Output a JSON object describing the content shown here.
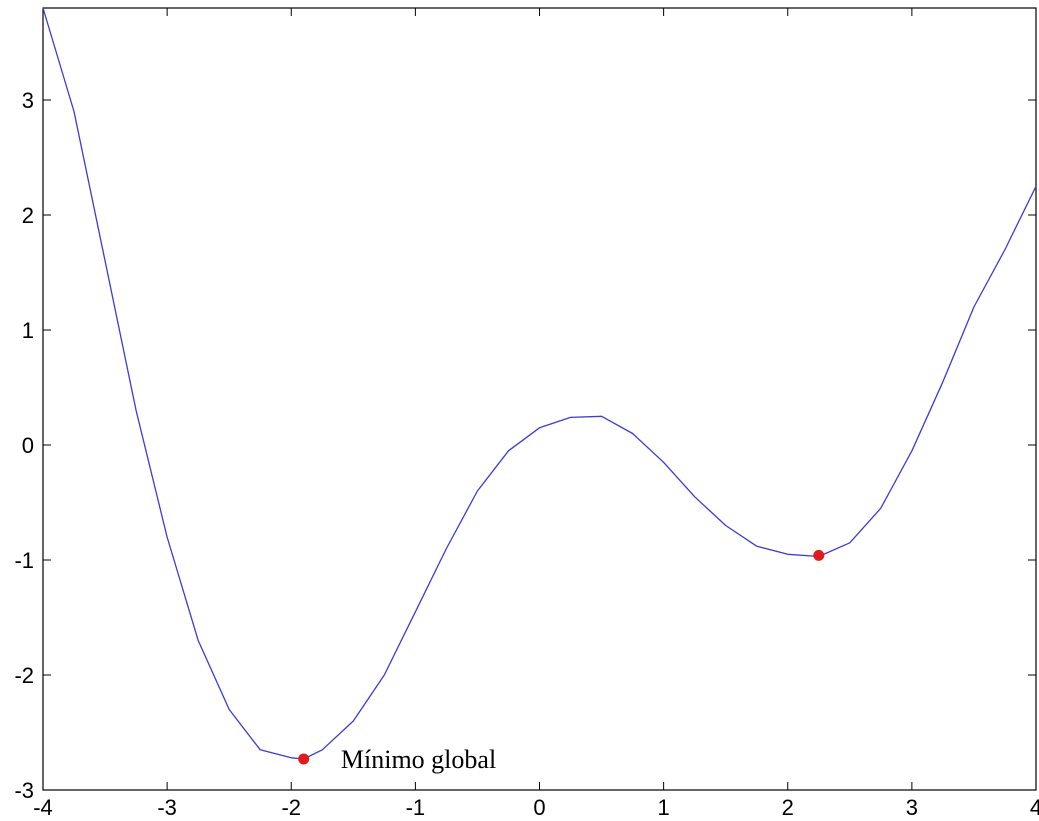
{
  "chart_data": {
    "type": "line",
    "title": "",
    "xlabel": "",
    "ylabel": "",
    "xlim": [
      -4,
      4
    ],
    "ylim": [
      -3,
      3.8
    ],
    "grid": false,
    "legend": "none",
    "x_ticks": [
      -4,
      -3,
      -2,
      -1,
      0,
      1,
      2,
      3,
      4
    ],
    "y_ticks": [
      -3,
      -2,
      -1,
      0,
      1,
      2,
      3
    ],
    "x_tick_labels": [
      "-4",
      "-3",
      "-2",
      "-1",
      "0",
      "1",
      "2",
      "3",
      "4"
    ],
    "y_tick_labels": [
      "-3",
      "-2",
      "-1",
      "0",
      "1",
      "2",
      "3"
    ],
    "series": [
      {
        "color": "#3b3bd6",
        "x": [
          -4.0,
          -3.75,
          -3.5,
          -3.25,
          -3.0,
          -2.75,
          -2.5,
          -2.25,
          -2.0,
          -1.9,
          -1.75,
          -1.5,
          -1.25,
          -1.0,
          -0.75,
          -0.5,
          -0.25,
          0.0,
          0.25,
          0.5,
          0.75,
          1.0,
          1.25,
          1.5,
          1.75,
          2.0,
          2.25,
          2.5,
          2.75,
          3.0,
          3.25,
          3.5,
          3.75,
          4.0
        ],
        "y": [
          3.8,
          2.9,
          1.6,
          0.3,
          -0.8,
          -1.7,
          -2.3,
          -2.65,
          -2.72,
          -2.73,
          -2.65,
          -2.4,
          -2.0,
          -1.45,
          -0.9,
          -0.4,
          -0.05,
          0.15,
          0.24,
          0.25,
          0.1,
          -0.15,
          -0.45,
          -0.7,
          -0.88,
          -0.95,
          -0.97,
          -0.85,
          -0.55,
          -0.05,
          0.55,
          1.2,
          1.7,
          2.25
        ]
      }
    ],
    "points": [
      {
        "x": -1.9,
        "y": -2.73,
        "color": "#e01b1b"
      },
      {
        "x": 2.25,
        "y": -0.96,
        "color": "#e01b1b"
      }
    ],
    "annotations": [
      {
        "text": "Mínimo global",
        "x": -1.6,
        "y": -2.73
      }
    ],
    "axis_color": "#000000"
  }
}
